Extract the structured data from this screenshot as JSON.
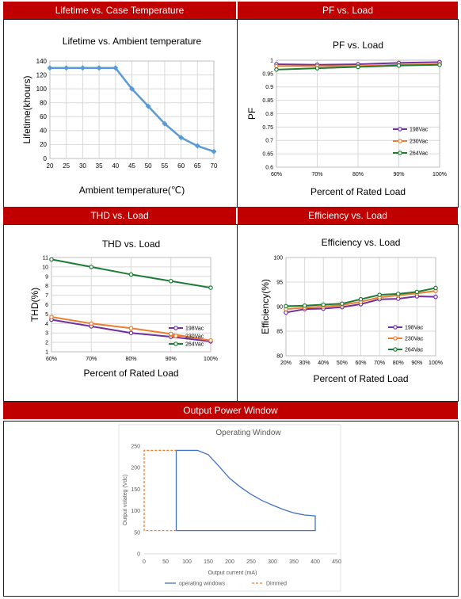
{
  "headers": {
    "lifetime": "Lifetime vs. Case Temperature",
    "pf": "PF vs. Load",
    "thd": "THD vs. Load",
    "eff": "Efficiency vs. Load",
    "output": "Output Power Window"
  },
  "colors": {
    "header_bg": "#c00000",
    "s198": "#7030a0",
    "s230": "#ed7d31",
    "s264": "#1e7b34",
    "lifetime": "#5b9bd5",
    "window": "#4472c4",
    "dimmed": "#ed7d31"
  },
  "chart_data": [
    {
      "id": "lifetime",
      "type": "line",
      "title": "Lifetime vs. Ambient temperature",
      "xlabel": "Ambient temperature(℃)",
      "ylabel": "Lifetime(khours)",
      "x": [
        20,
        25,
        30,
        35,
        40,
        45,
        50,
        55,
        60,
        65,
        70
      ],
      "x_ticks": [
        "20",
        "25",
        "30",
        "35",
        "40",
        "45",
        "50",
        "55",
        "60",
        "65",
        "70"
      ],
      "y_ticks": [
        "0",
        "20",
        "40",
        "60",
        "80",
        "100",
        "120",
        "140"
      ],
      "ylim": [
        0,
        140
      ],
      "grid": true,
      "series": [
        {
          "values": [
            130,
            130,
            130,
            130,
            130,
            100,
            75,
            50,
            30,
            18,
            10
          ]
        }
      ]
    },
    {
      "id": "pf",
      "type": "line",
      "title": "PF vs. Load",
      "xlabel": "Percent of Rated Load",
      "ylabel": "PF",
      "categories": [
        "60%",
        "70%",
        "80%",
        "90%",
        "100%"
      ],
      "y_ticks": [
        "0.6",
        "0.65",
        "0.7",
        "0.75",
        "0.8",
        "0.85",
        "0.9",
        "0.95",
        "1"
      ],
      "ylim": [
        0.6,
        1.0
      ],
      "grid": true,
      "legend": "right",
      "series": [
        {
          "name": "198Vac",
          "values": [
            0.985,
            0.983,
            0.985,
            0.99,
            0.993
          ]
        },
        {
          "name": "230Vac",
          "values": [
            0.978,
            0.978,
            0.978,
            0.983,
            0.985
          ]
        },
        {
          "name": "264Vac",
          "values": [
            0.965,
            0.97,
            0.975,
            0.98,
            0.983
          ]
        }
      ]
    },
    {
      "id": "thd",
      "type": "line",
      "title": "THD vs. Load",
      "xlabel": "Percent of Rated Load",
      "ylabel": "THD(%)",
      "categories": [
        "60%",
        "70%",
        "80%",
        "90%",
        "100%"
      ],
      "y_ticks": [
        "1",
        "2",
        "3",
        "4",
        "5",
        "6",
        "7",
        "8",
        "9",
        "10",
        "11"
      ],
      "ylim": [
        1,
        11
      ],
      "grid": true,
      "legend": "bottom-right",
      "series": [
        {
          "name": "198Vac",
          "values": [
            4.4,
            3.7,
            3.0,
            2.6,
            2.1
          ]
        },
        {
          "name": "230Vac",
          "values": [
            4.7,
            4.0,
            3.5,
            2.9,
            2.2
          ]
        },
        {
          "name": "264Vac",
          "values": [
            10.8,
            10.0,
            9.2,
            8.5,
            7.8
          ]
        }
      ]
    },
    {
      "id": "eff",
      "type": "line",
      "title": "Efficiency vs. Load",
      "xlabel": "Percent of Rated Load",
      "ylabel": "Efficiency(%)",
      "categories": [
        "20%",
        "30%",
        "40%",
        "50%",
        "60%",
        "70%",
        "80%",
        "90%",
        "100%"
      ],
      "y_ticks": [
        "80",
        "85",
        "90",
        "95",
        "100"
      ],
      "ylim": [
        80,
        100
      ],
      "grid": true,
      "legend": "bottom-right",
      "series": [
        {
          "name": "198Vac",
          "values": [
            88.8,
            89.5,
            89.6,
            89.9,
            90.5,
            91.5,
            91.6,
            92.1,
            92.0
          ]
        },
        {
          "name": "230Vac",
          "values": [
            89.5,
            89.8,
            90.0,
            90.3,
            91.0,
            91.9,
            92.3,
            92.7,
            93.2
          ]
        },
        {
          "name": "264Vac",
          "values": [
            90.1,
            90.2,
            90.4,
            90.6,
            91.5,
            92.4,
            92.6,
            93.0,
            93.8
          ]
        }
      ]
    },
    {
      "id": "window",
      "type": "line",
      "title": "Operating Window",
      "xlabel": "Output current (mA)",
      "ylabel": "Output volateg (Vdc)",
      "x_ticks": [
        "0",
        "50",
        "100",
        "150",
        "200",
        "250",
        "300",
        "350",
        "400",
        "450"
      ],
      "y_ticks": [
        "0",
        "50",
        "100",
        "150",
        "200",
        "250"
      ],
      "xlim": [
        0,
        450
      ],
      "ylim": [
        0,
        250
      ],
      "grid": false,
      "legend": "bottom",
      "series": [
        {
          "name": "operating windows",
          "style": "solid",
          "points": [
            [
              75,
              54
            ],
            [
              75,
              240
            ],
            [
              125,
              240
            ],
            [
              150,
              230
            ],
            [
              175,
              203
            ],
            [
              200,
              175
            ],
            [
              225,
              155
            ],
            [
              250,
              138
            ],
            [
              275,
              124
            ],
            [
              300,
              113
            ],
            [
              325,
              103
            ],
            [
              350,
              95
            ],
            [
              375,
              90
            ],
            [
              400,
              88
            ],
            [
              400,
              54
            ],
            [
              75,
              54
            ]
          ]
        },
        {
          "name": "Dimmed",
          "style": "dashed",
          "points": [
            [
              75,
              54
            ],
            [
              0,
              54
            ],
            [
              0,
              240
            ],
            [
              75,
              240
            ]
          ]
        }
      ]
    }
  ]
}
